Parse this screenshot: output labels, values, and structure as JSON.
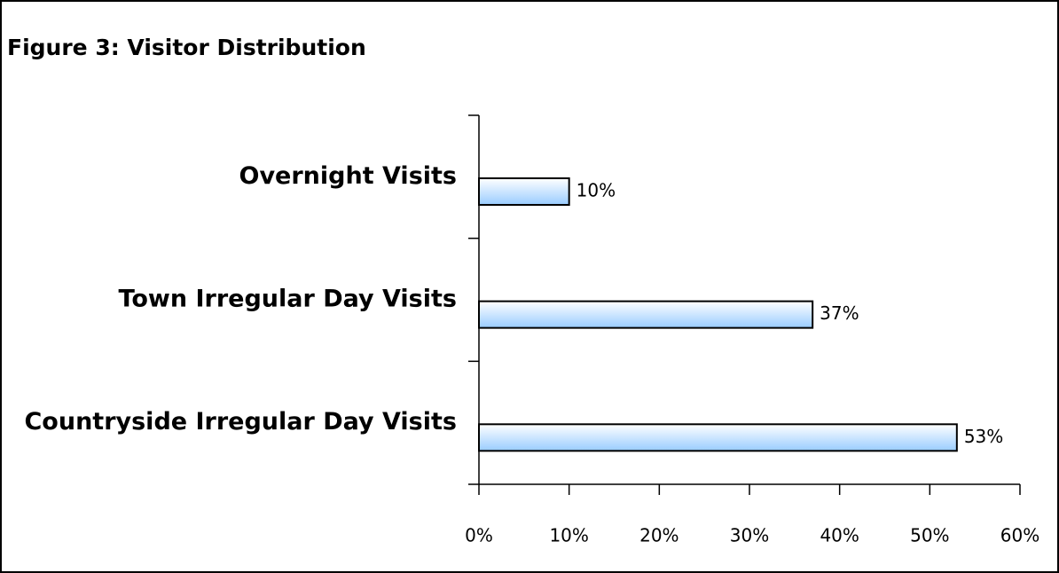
{
  "chart_data": {
    "type": "hbar",
    "title": "Figure 3: Visitor Distribution",
    "categories": [
      "Overnight Visits",
      "Town Irregular Day Visits",
      "Countryside Irregular Day Visits"
    ],
    "values": [
      10,
      37,
      53
    ],
    "value_labels": [
      "10%",
      "37%",
      "53%"
    ],
    "color": "#99ccff",
    "xlim": [
      0,
      60
    ],
    "xticks": [
      {
        "value": 0,
        "label": "0%"
      },
      {
        "value": 10,
        "label": "10%"
      },
      {
        "value": 20,
        "label": "20%"
      },
      {
        "value": 30,
        "label": "30%"
      },
      {
        "value": 40,
        "label": "40%"
      },
      {
        "value": 50,
        "label": "50%"
      },
      {
        "value": 60,
        "label": "60%"
      }
    ],
    "grid": false
  }
}
